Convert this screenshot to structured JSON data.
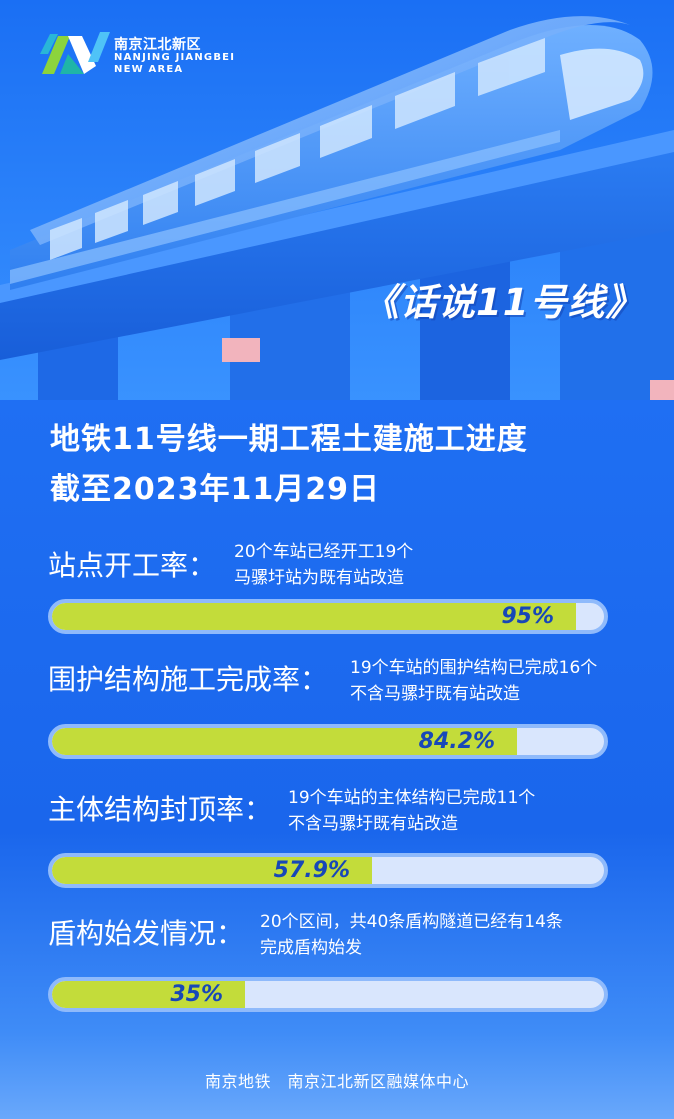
{
  "logo": {
    "name_cn": "南京江北新区",
    "name_en_line1": "NANJING JIANGBEI",
    "name_en_line2": "NEW AREA"
  },
  "series_title": "《话说11号线》",
  "headline": {
    "line1": "地铁11号线一期工程土建施工进度",
    "line2": "截至2023年11月29日"
  },
  "metrics": [
    {
      "label": "站点开工率：",
      "note_line1": "20个车站已经开工19个",
      "note_line2": "马骡圩站为既有站改造",
      "value_text": "95%",
      "value": 95
    },
    {
      "label": "围护结构施工完成率：",
      "note_line1": "19个车站的围护结构已完成16个",
      "note_line2": "不含马骡圩既有站改造",
      "value_text": "84.2%",
      "value": 84.2
    },
    {
      "label": "主体结构封顶率：",
      "note_line1": "19个车站的主体结构已完成11个",
      "note_line2": "不含马骡圩既有站改造",
      "value_text": "57.9%",
      "value": 57.9
    },
    {
      "label": "盾构始发情况：",
      "note_line1": "20个区间，共40条盾构隧道已经有14条",
      "note_line2": "完成盾构始发",
      "value_text": "35%",
      "value": 35
    }
  ],
  "footer": "南京地铁　南京江北新区融媒体中心",
  "colors": {
    "background": "#1d6cf2",
    "bar_fill": "#c3dc3a",
    "bar_track": "#d9e6fd",
    "bar_border": "#8fbafb",
    "value_text": "#1747b8"
  }
}
